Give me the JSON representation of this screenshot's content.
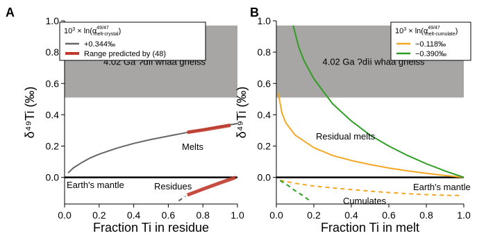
{
  "chart_data": [
    {
      "type": "line",
      "panel": "A",
      "xlabel": "Fraction Ti in residue",
      "ylabel": "δ⁴⁹Ti (‰)",
      "xlim": [
        0,
        1
      ],
      "ylim": [
        -0.17,
        1.0
      ],
      "xticks": [
        "0.0",
        "0.2",
        "0.4",
        "0.6",
        "0.8",
        "1.0"
      ],
      "yticks": [
        "0.0",
        "0.2",
        "0.4",
        "0.6",
        "0.8",
        "1.0"
      ],
      "band": {
        "y": [
          0.51,
          0.97
        ],
        "label": "4.02 Ga Ɂdìi whaà gneiss",
        "color": "#a8a6a4"
      },
      "legend": {
        "title_prefix": "10",
        "title_exp": "3",
        "title_main": " × ln(α",
        "title_sup": "49/47",
        "title_sub": "melt-crystal",
        "title_close": ")",
        "items": [
          "+0.344‰",
          "Range predicted by (48)"
        ]
      },
      "series": [
        {
          "name": "+0.344‰",
          "color": "#666666",
          "style": "solid",
          "x": [
            0.02,
            0.05,
            0.1,
            0.15,
            0.2,
            0.3,
            0.4,
            0.5,
            0.6,
            0.7,
            0.8,
            0.9,
            1.0
          ],
          "y": [
            0.028,
            0.06,
            0.095,
            0.125,
            0.148,
            0.186,
            0.217,
            0.242,
            0.264,
            0.285,
            0.305,
            0.324,
            0.344
          ]
        },
        {
          "name": "Range predicted by (48)",
          "color": "#c0392b",
          "style": "band",
          "x": [
            0.71,
            0.8,
            0.9,
            0.96
          ],
          "y": [
            0.288,
            0.303,
            0.322,
            0.333
          ]
        },
        {
          "name": "Residues (+0.344‰)",
          "color": "#666666",
          "style": "dashed",
          "x": [
            0.66,
            0.7
          ],
          "y": [
            -0.15,
            -0.12
          ]
        },
        {
          "name": "Residues range",
          "color": "#c0392b",
          "style": "band",
          "x": [
            0.71,
            0.8,
            0.9,
            0.99
          ],
          "y": [
            -0.113,
            -0.075,
            -0.035,
            0.0
          ]
        }
      ],
      "annotations": [
        "Melts",
        "Earth's mantle",
        "Residues"
      ]
    },
    {
      "type": "line",
      "panel": "B",
      "xlabel": "Fraction Ti in melt",
      "ylabel": "δ⁴⁹Ti (‰)",
      "xlim": [
        0,
        1
      ],
      "ylim": [
        -0.17,
        1.0
      ],
      "xticks": [
        "0.0",
        "0.2",
        "0.4",
        "0.6",
        "0.8",
        "1.0"
      ],
      "yticks": [
        "0.0",
        "0.2",
        "0.4",
        "0.6",
        "0.8",
        "1.0"
      ],
      "band": {
        "y": [
          0.51,
          0.97
        ],
        "label": "4.02 Ga Ɂdìi whaà gneiss",
        "color": "#a8a6a4"
      },
      "legend": {
        "title_prefix": "10",
        "title_exp": "3",
        "title_main": " × ln(α",
        "title_sup": "49/47",
        "title_sub": "melt-cumulate",
        "title_close": ")",
        "items": [
          "−0.118‰",
          "−0.390‰"
        ]
      },
      "series": [
        {
          "name": "−0.118‰",
          "color": "#f5a623",
          "style": "solid",
          "x": [
            0.01,
            0.03,
            0.05,
            0.1,
            0.2,
            0.3,
            0.4,
            0.5,
            0.6,
            0.7,
            0.8,
            0.9,
            1.0
          ],
          "y": [
            0.54,
            0.41,
            0.35,
            0.27,
            0.19,
            0.14,
            0.108,
            0.082,
            0.06,
            0.042,
            0.026,
            0.012,
            0.0
          ]
        },
        {
          "name": "−0.390‰",
          "color": "#2e9e22",
          "style": "solid",
          "x": [
            0.09,
            0.12,
            0.15,
            0.2,
            0.3,
            0.4,
            0.5,
            0.6,
            0.7,
            0.8,
            0.9,
            1.0
          ],
          "y": [
            0.97,
            0.83,
            0.74,
            0.63,
            0.47,
            0.36,
            0.27,
            0.2,
            0.14,
            0.087,
            0.041,
            0.0
          ]
        },
        {
          "name": "Cumulates (−0.118‰)",
          "color": "#f5a623",
          "style": "dashed",
          "x": [
            0.02,
            0.1,
            0.2,
            0.3,
            0.4,
            0.5,
            0.6,
            0.7,
            0.8,
            0.9,
            0.98
          ],
          "y": [
            -0.018,
            -0.038,
            -0.055,
            -0.067,
            -0.078,
            -0.088,
            -0.097,
            -0.104,
            -0.11,
            -0.114,
            -0.116
          ]
        },
        {
          "name": "Cumulates (−0.390‰)",
          "color": "#2e9e22",
          "style": "dashed",
          "x": [
            0.02,
            0.06,
            0.1,
            0.14,
            0.18
          ],
          "y": [
            -0.02,
            -0.05,
            -0.085,
            -0.115,
            -0.15
          ]
        }
      ],
      "annotations": [
        "Residual melts",
        "Earth's mantle",
        "Cumulates"
      ]
    }
  ]
}
